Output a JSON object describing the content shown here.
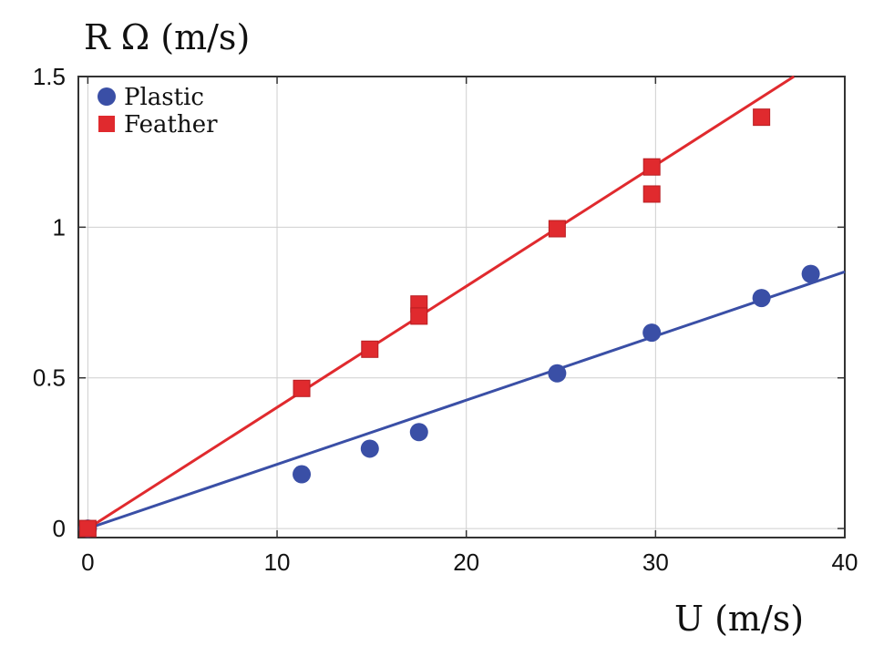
{
  "chart_data": {
    "type": "scatter",
    "ylabel": "R Ω (m/s)",
    "xlabel": "U (m/s)",
    "xlim": [
      -0.5,
      40
    ],
    "ylim": [
      -0.03,
      1.5
    ],
    "xticks": [
      0,
      10,
      20,
      30,
      40
    ],
    "yticks": [
      0,
      0.5,
      1,
      1.5
    ],
    "xtick_labels": [
      "0",
      "10",
      "20",
      "30",
      "40"
    ],
    "ytick_labels": [
      "0",
      "0.5",
      "1",
      "1.5"
    ],
    "grid": true,
    "legend_position": "top-left",
    "series": [
      {
        "name": "Plastic",
        "marker": "circle",
        "color": "#3a4fa6",
        "x": [
          0,
          11.3,
          14.9,
          17.5,
          24.8,
          29.8,
          35.6,
          38.2
        ],
        "y": [
          0,
          0.18,
          0.265,
          0.32,
          0.515,
          0.65,
          0.765,
          0.845
        ],
        "fit": {
          "slope": 0.0213,
          "intercept": 0
        }
      },
      {
        "name": "Feather",
        "marker": "square",
        "color": "#e02a2e",
        "x": [
          0,
          11.3,
          14.9,
          17.5,
          17.5,
          24.8,
          29.8,
          29.8,
          35.6
        ],
        "y": [
          0,
          0.465,
          0.595,
          0.745,
          0.705,
          0.995,
          1.2,
          1.11,
          1.365
        ],
        "fit": {
          "slope": 0.0402,
          "intercept": 0
        }
      }
    ]
  }
}
